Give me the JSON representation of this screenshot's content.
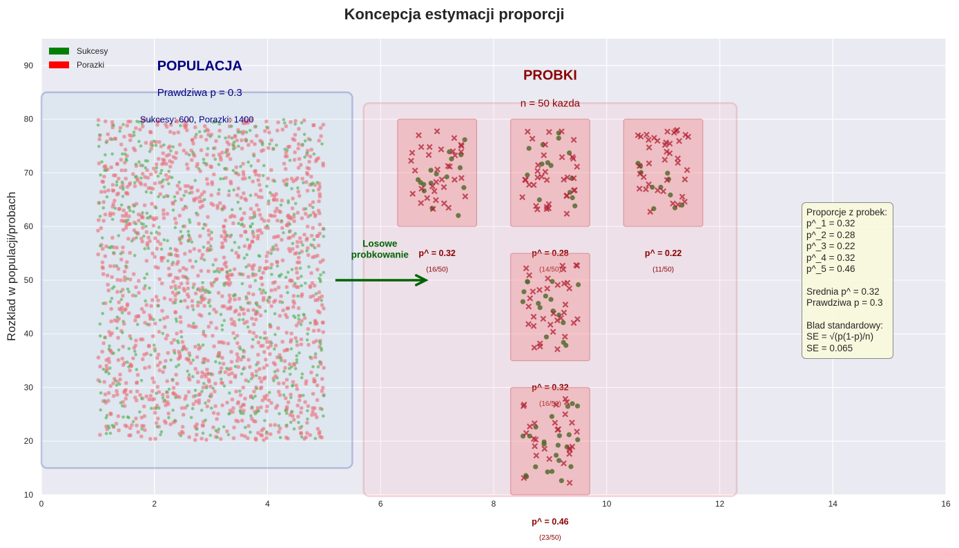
{
  "chart_data": {
    "type": "scatter",
    "title": "Koncepcja estymacji proporcji",
    "xlabel": "",
    "ylabel": "Rozklad w populacji/probach",
    "xlim": [
      0,
      16
    ],
    "ylim": [
      10,
      95
    ],
    "xticks": [
      "0",
      "2",
      "4",
      "6",
      "8",
      "10",
      "12",
      "14",
      "16"
    ],
    "yticks": [
      "10",
      "20",
      "30",
      "40",
      "50",
      "60",
      "70",
      "80",
      "90"
    ],
    "grid": true,
    "legend": {
      "placement": "top-left",
      "entries": [
        {
          "label": "Sukcesy",
          "color": "#008000"
        },
        {
          "label": "Porazki",
          "color": "#ff0000"
        }
      ]
    },
    "population": {
      "title": "POPULACJA",
      "subtitle": "Prawdziwa p = 0.3",
      "counts_label": "Sukcesy: 600, Porazki: 1400",
      "successes": 600,
      "failures": 1400,
      "true_p": 0.3,
      "x_range": [
        1,
        5
      ],
      "y_range": [
        20,
        80
      ],
      "box": {
        "x": [
          0,
          5.5
        ],
        "y": [
          15,
          85
        ]
      },
      "title_pos": [
        2.8,
        90
      ],
      "subtitle_pos": [
        2.8,
        85
      ],
      "counts_pos": [
        2.75,
        80
      ]
    },
    "samples_group": {
      "title": "PROBKI",
      "subtitle": "n = 50 kazda",
      "box": {
        "x": [
          5.7,
          12.3
        ],
        "y": [
          10,
          83
        ]
      },
      "title_pos": [
        9,
        88
      ],
      "subtitle_pos": [
        9,
        83
      ]
    },
    "arrow": {
      "label": "Losowe\nprobkowanie",
      "label_lines": [
        "Losowe",
        "probkowanie"
      ],
      "from": [
        5.2,
        50
      ],
      "to": [
        6.8,
        50
      ],
      "label_pos": [
        6.0,
        56
      ],
      "color": "#006400"
    },
    "samples": [
      {
        "label": "p^ = 0.32",
        "fraction": "(16/50)",
        "p_hat": 0.32,
        "successes": 16,
        "n": 50,
        "center": [
          7,
          70
        ],
        "box": {
          "x": [
            6.3,
            7.7
          ],
          "y": [
            60,
            80
          ]
        },
        "label_pos": [
          7,
          55
        ],
        "fraction_pos": [
          7,
          52
        ]
      },
      {
        "label": "p^ = 0.28",
        "fraction": "(14/50)",
        "p_hat": 0.28,
        "successes": 14,
        "n": 50,
        "center": [
          9,
          70
        ],
        "box": {
          "x": [
            8.3,
            9.7
          ],
          "y": [
            60,
            80
          ]
        },
        "label_pos": [
          9,
          55
        ],
        "fraction_pos": [
          9,
          52
        ]
      },
      {
        "label": "p^ = 0.22",
        "fraction": "(11/50)",
        "p_hat": 0.22,
        "successes": 11,
        "n": 50,
        "center": [
          11,
          70
        ],
        "box": {
          "x": [
            10.3,
            11.7
          ],
          "y": [
            60,
            80
          ]
        },
        "label_pos": [
          11,
          55
        ],
        "fraction_pos": [
          11,
          52
        ]
      },
      {
        "label": "p^ = 0.32",
        "fraction": "(16/50)",
        "p_hat": 0.32,
        "successes": 16,
        "n": 50,
        "center": [
          9,
          45
        ],
        "box": {
          "x": [
            8.3,
            9.7
          ],
          "y": [
            35,
            55
          ]
        },
        "label_pos": [
          9,
          30
        ],
        "fraction_pos": [
          9,
          27
        ]
      },
      {
        "label": "p^ = 0.46",
        "fraction": "(23/50)",
        "p_hat": 0.46,
        "successes": 23,
        "n": 50,
        "center": [
          9,
          20
        ],
        "box": {
          "x": [
            8.3,
            9.7
          ],
          "y": [
            10,
            30
          ]
        },
        "label_pos": [
          9,
          5
        ],
        "fraction_pos": [
          9,
          2
        ]
      }
    ],
    "stats_box": {
      "lines": [
        "Proporcje z probek:",
        "p^_1 = 0.32",
        "p^_2 = 0.28",
        "p^_3 = 0.22",
        "p^_4 = 0.32",
        "p^_5 = 0.46",
        "",
        "Srednia p^ = 0.32",
        "Prawdziwa p = 0.3",
        "",
        "Blad standardowy:",
        "SE = √(p(1-p)/n)",
        "SE = 0.065"
      ],
      "sample_props": [
        0.32,
        0.28,
        0.22,
        0.32,
        0.46
      ],
      "mean_p_hat": 0.32,
      "true_p": 0.3,
      "se_formula": "SE = √(p(1-p)/n)",
      "se": 0.065
    },
    "colors": {
      "success_pop": "#5fb55f",
      "failure_pop": "#e8707a",
      "success_sample": "#556b2f",
      "failure_sample": "#b22234",
      "pop_title": "#000080",
      "sample_title": "#8b0000",
      "arrow": "#006400",
      "axes_bg": "#eaeaf2"
    }
  }
}
